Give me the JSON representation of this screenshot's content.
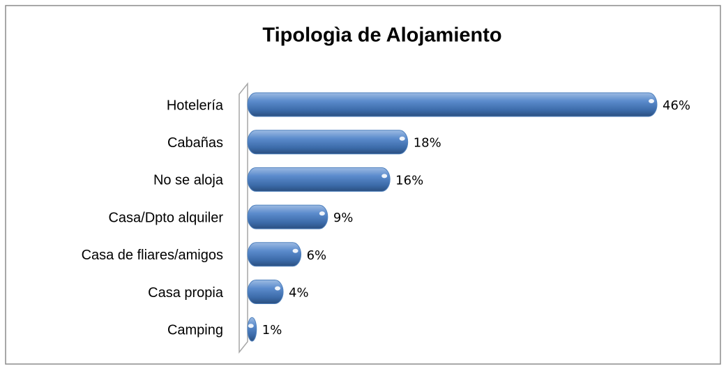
{
  "chart_data": {
    "type": "bar",
    "orientation": "horizontal",
    "title": "Tipologìa de Alojamiento",
    "categories": [
      "Hotelería",
      "Cabañas",
      "No se aloja",
      "Casa/Dpto alquiler",
      "Casa de fliares/amigos",
      "Casa propia",
      "Camping"
    ],
    "values": [
      46,
      18,
      16,
      9,
      6,
      4,
      1
    ],
    "value_labels": [
      "46%",
      "18%",
      "16%",
      "9%",
      "6%",
      "4%",
      "1%"
    ],
    "color": "#4f81bd"
  }
}
